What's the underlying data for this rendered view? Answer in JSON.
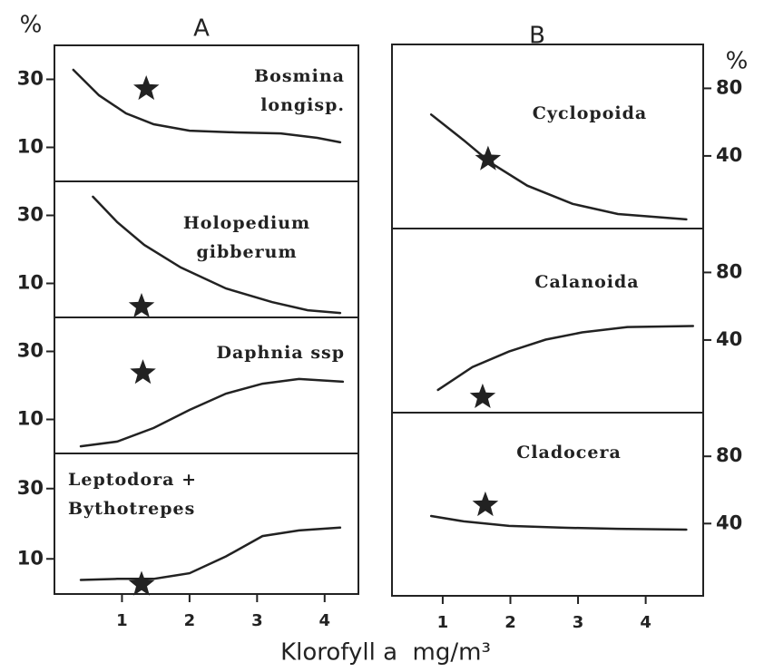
{
  "figure": {
    "panel_a": "A",
    "panel_b": "B",
    "y_unit_left": "%",
    "y_unit_right": "%",
    "x_label": "Klorofyll a  mg/m³"
  },
  "chart_data": [
    {
      "type": "line",
      "label": [
        "Bosmina",
        "longisp."
      ],
      "x": [
        0.28,
        0.66,
        1.06,
        1.47,
        2.0,
        2.68,
        3.35,
        3.89,
        4.23
      ],
      "values": [
        32.8,
        25.3,
        20,
        16.8,
        14.9,
        14.4,
        14.1,
        12.8,
        11.5
      ],
      "marker": {
        "x": 1.36,
        "y": 27.2
      },
      "xlim": [
        0,
        4.5
      ],
      "ylim": [
        0,
        40
      ],
      "yticks": [
        10,
        30
      ],
      "yaxis_side": "left",
      "color": "#222222"
    },
    {
      "type": "line",
      "label": [
        "Holopedium",
        "gibberum"
      ],
      "x": [
        0.57,
        0.93,
        1.33,
        1.87,
        2.54,
        3.22,
        3.75,
        4.23
      ],
      "values": [
        35.5,
        28,
        21.3,
        14.7,
        8.5,
        4.5,
        2.1,
        1.3
      ],
      "marker": {
        "x": 1.29,
        "y": 3.2
      },
      "xlim": [
        0,
        4.5
      ],
      "ylim": [
        0,
        40
      ],
      "yticks": [
        10,
        30
      ],
      "yaxis_side": "left",
      "color": "#222222"
    },
    {
      "type": "line",
      "label": [
        "Daphnia ssp"
      ],
      "x": [
        0.39,
        0.93,
        1.47,
        2.0,
        2.54,
        3.08,
        3.62,
        4.27
      ],
      "values": [
        2.1,
        3.5,
        7.5,
        12.8,
        17.6,
        20.5,
        21.9,
        21.1
      ],
      "marker": {
        "x": 1.31,
        "y": 23.7
      },
      "xlim": [
        0,
        4.5
      ],
      "ylim": [
        0,
        40
      ],
      "yticks": [
        10,
        30
      ],
      "yaxis_side": "left",
      "color": "#222222"
    },
    {
      "type": "line",
      "label": [
        "Leptodora +",
        "Bythotrepes"
      ],
      "x": [
        0.39,
        0.93,
        1.47,
        2.0,
        2.54,
        3.08,
        3.62,
        4.23
      ],
      "values": [
        4,
        4.3,
        4.3,
        5.9,
        10.7,
        16.5,
        18.1,
        18.9
      ],
      "marker": {
        "x": 1.29,
        "y": 2.7
      },
      "xlim": [
        0,
        4.5
      ],
      "ylim": [
        0,
        40
      ],
      "yticks": [
        10,
        30
      ],
      "xticks": [
        1,
        2,
        3,
        4
      ],
      "yaxis_side": "left",
      "color": "#222222"
    },
    {
      "type": "line",
      "label": [
        "Cyclopoida"
      ],
      "x": [
        0.83,
        1.31,
        1.71,
        2.25,
        2.92,
        3.59,
        4.6
      ],
      "values": [
        64.5,
        49.3,
        35.9,
        22.4,
        11.6,
        5.6,
        2.4
      ],
      "marker": {
        "x": 1.67,
        "y": 38
      },
      "xlim": [
        0.25,
        4.85
      ],
      "ylim": [
        -3,
        106
      ],
      "yticks": [
        40,
        80
      ],
      "yaxis_side": "right",
      "color": "#222222"
    },
    {
      "type": "line",
      "label": [
        "Calanoida"
      ],
      "x": [
        0.93,
        1.44,
        1.98,
        2.52,
        3.06,
        3.73,
        4.7
      ],
      "values": [
        10.5,
        24,
        33.2,
        40.2,
        44.5,
        47.7,
        48.3
      ],
      "marker": {
        "x": 1.59,
        "y": 6.2
      },
      "xlim": [
        0.25,
        4.85
      ],
      "ylim": [
        -3,
        106
      ],
      "yticks": [
        40,
        80
      ],
      "yaxis_side": "right",
      "color": "#222222"
    },
    {
      "type": "line",
      "label": [
        "Cladocera"
      ],
      "x": [
        0.83,
        1.31,
        1.98,
        2.79,
        3.59,
        4.6
      ],
      "values": [
        44.5,
        41.3,
        38.6,
        37.5,
        36.9,
        36.4
      ],
      "marker": {
        "x": 1.63,
        "y": 51
      },
      "xlim": [
        0.25,
        4.85
      ],
      "ylim": [
        -3,
        106
      ],
      "yticks": [
        40,
        80
      ],
      "xticks": [
        1,
        2,
        3,
        4
      ],
      "yaxis_side": "right",
      "color": "#222222"
    }
  ]
}
